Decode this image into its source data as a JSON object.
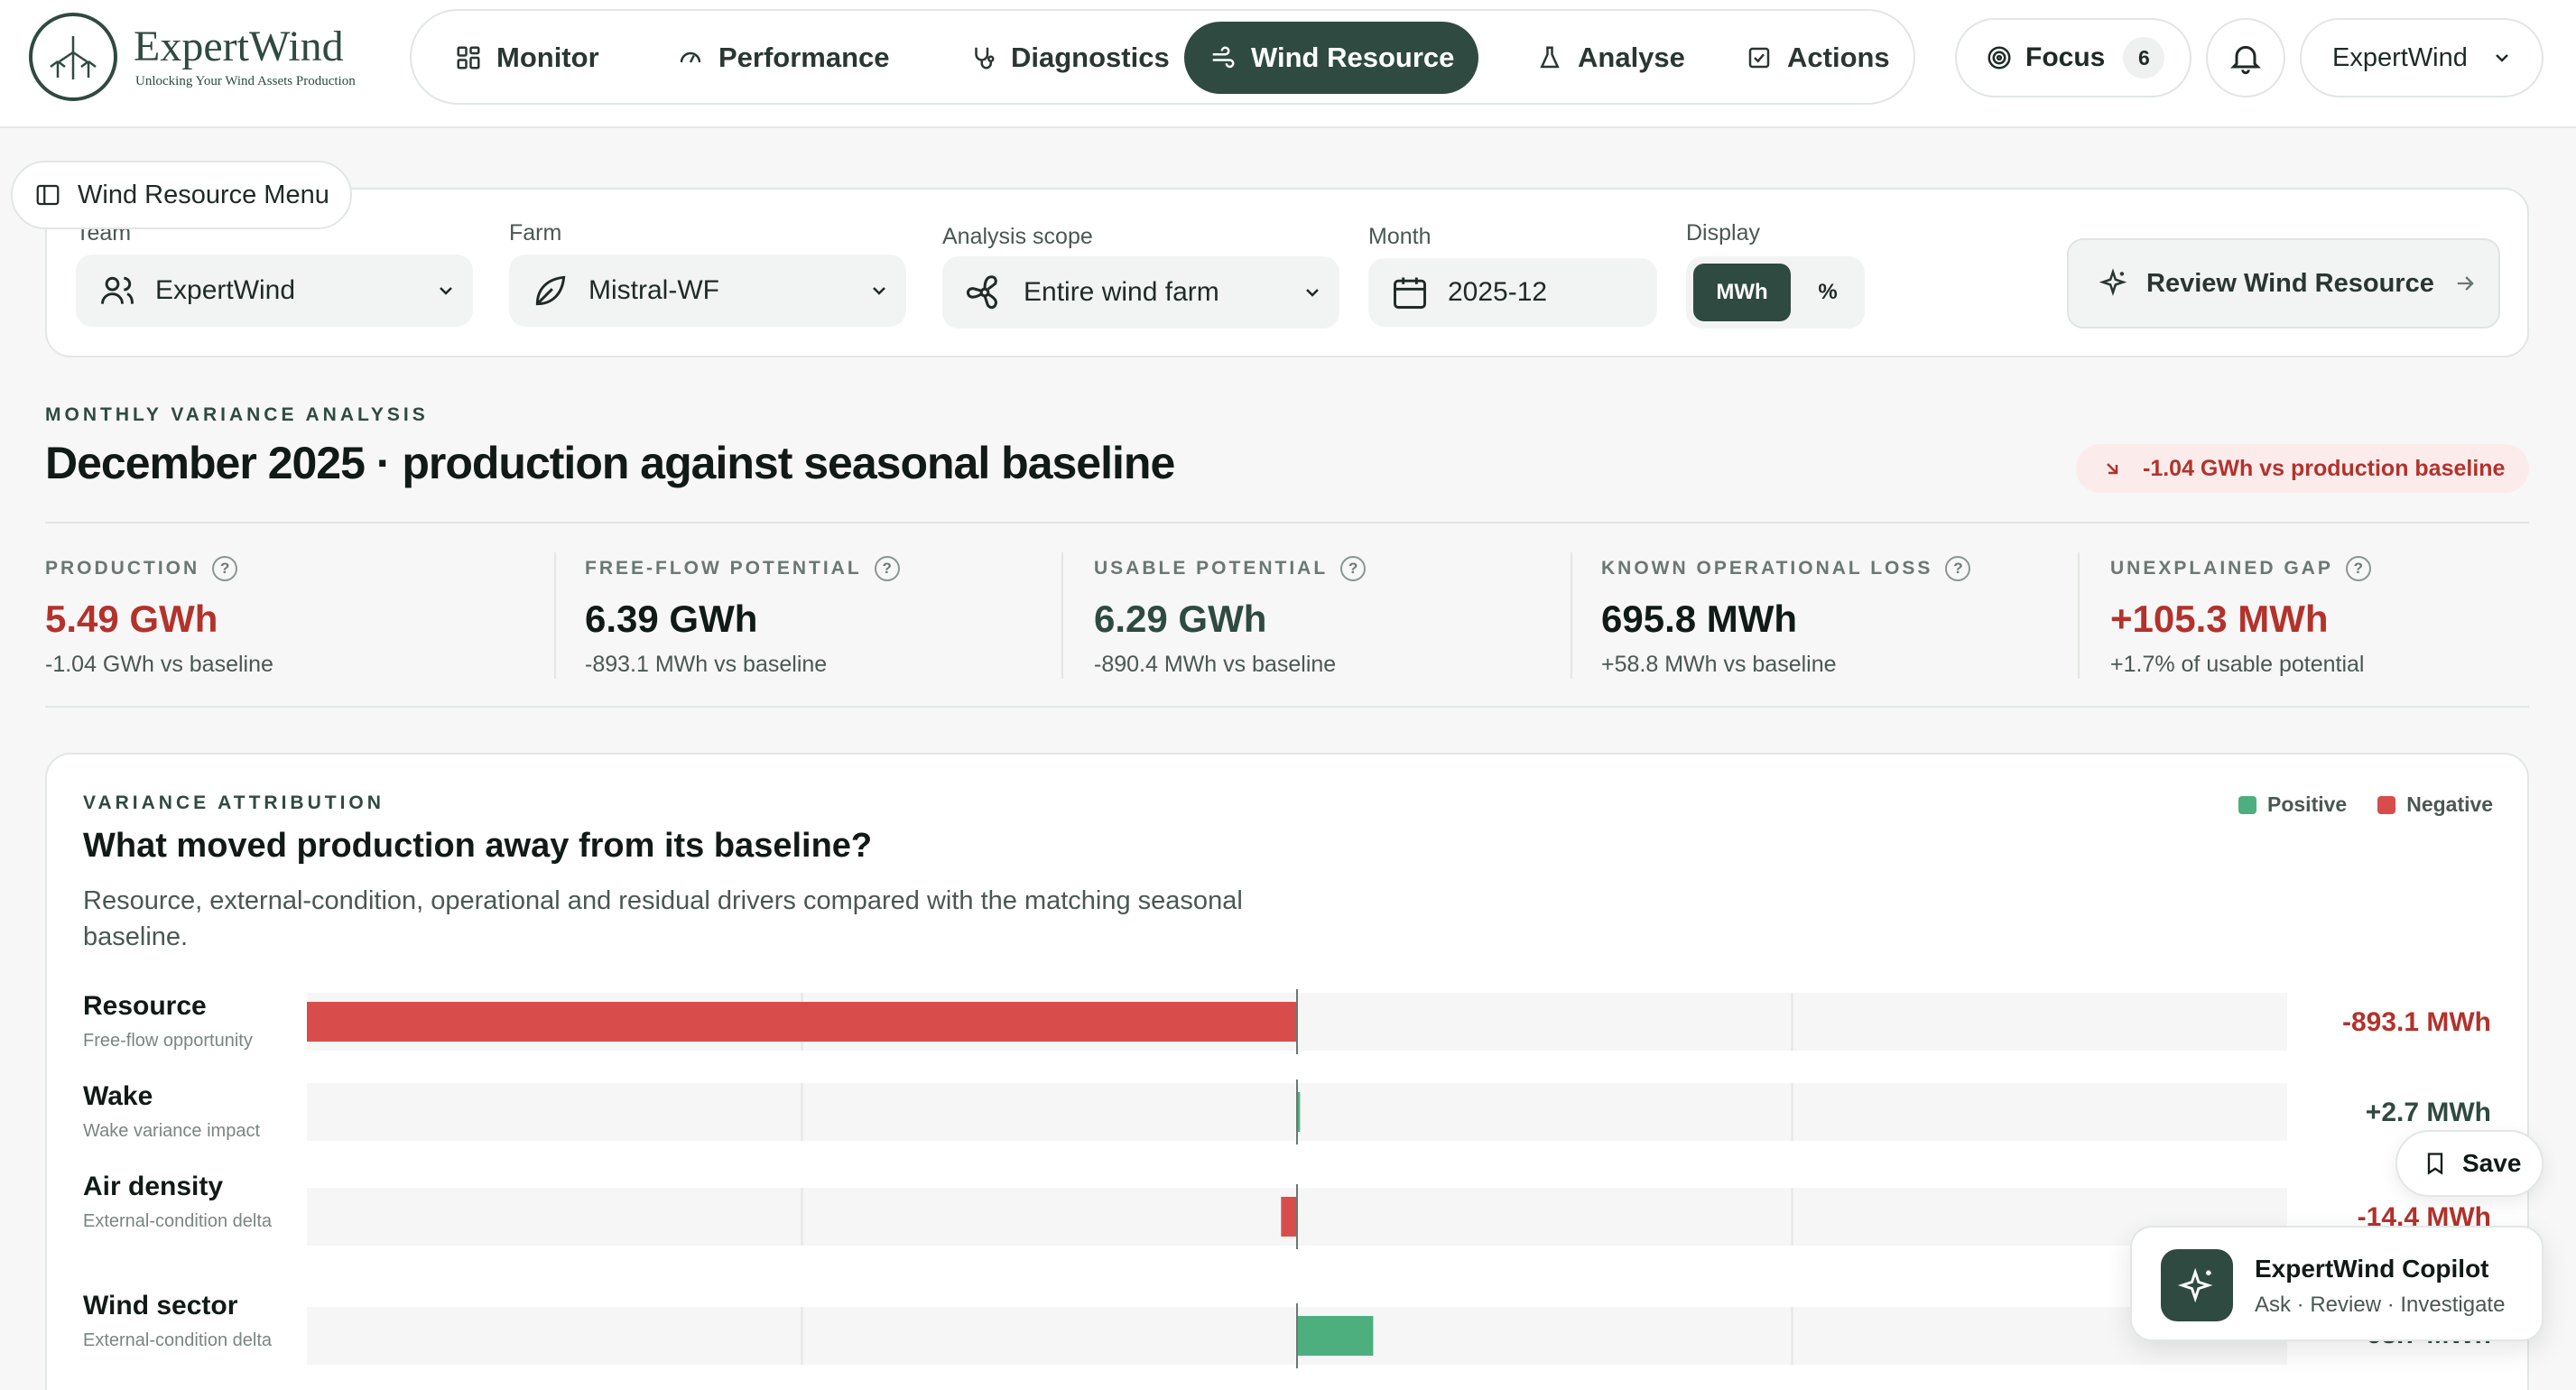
{
  "brand": {
    "name": "ExpertWind",
    "tagline": "Unlocking Your Wind Assets Production"
  },
  "nav": {
    "items": [
      {
        "label": "Monitor",
        "icon": "grid-icon"
      },
      {
        "label": "Performance",
        "icon": "gauge-icon"
      },
      {
        "label": "Diagnostics",
        "icon": "stethoscope-icon"
      },
      {
        "label": "Wind Resource",
        "icon": "wind-icon",
        "active": true
      },
      {
        "label": "Analyse",
        "icon": "flask-icon"
      },
      {
        "label": "Actions",
        "icon": "checkbox-icon"
      }
    ],
    "focus_label": "Focus",
    "focus_count": "6",
    "account_label": "ExpertWind"
  },
  "filters": {
    "menu_label": "Wind Resource Menu",
    "team_label": "Team",
    "team_value": "ExpertWind",
    "farm_label": "Farm",
    "farm_value": "Mistral-WF",
    "scope_label": "Analysis scope",
    "scope_value": "Entire wind farm",
    "month_label": "Month",
    "month_value": "2025-12",
    "display_label": "Display",
    "display_options": [
      "MWh",
      "%"
    ],
    "display_selected": "MWh",
    "review_label": "Review Wind Resource"
  },
  "header": {
    "eyebrow": "MONTHLY VARIANCE ANALYSIS",
    "title": "December 2025 · production against seasonal baseline",
    "delta_badge": "-1.04 GWh vs production baseline"
  },
  "kpis": [
    {
      "label": "PRODUCTION",
      "value": "5.49 GWh",
      "sub": "-1.04 GWh vs baseline",
      "tone": "red"
    },
    {
      "label": "FREE-FLOW POTENTIAL",
      "value": "6.39 GWh",
      "sub": "-893.1 MWh vs baseline",
      "tone": "dark"
    },
    {
      "label": "USABLE POTENTIAL",
      "value": "6.29 GWh",
      "sub": "-890.4 MWh vs baseline",
      "tone": "green"
    },
    {
      "label": "KNOWN OPERATIONAL LOSS",
      "value": "695.8 MWh",
      "sub": "+58.8 MWh vs baseline",
      "tone": "dark"
    },
    {
      "label": "UNEXPLAINED GAP",
      "value": "+105.3 MWh",
      "sub": "+1.7% of usable potential",
      "tone": "red"
    }
  ],
  "attribution": {
    "eyebrow": "VARIANCE ATTRIBUTION",
    "title": "What moved production away from its baseline?",
    "description": "Resource, external-condition, operational and residual drivers compared with the matching seasonal baseline.",
    "legend_positive": "Positive",
    "legend_negative": "Negative",
    "colors": {
      "positive": "#4caf7d",
      "negative": "#d94c4c"
    },
    "rows": [
      {
        "name": "Resource",
        "sub": "Free-flow opportunity",
        "value_label": "-893.1 MWh"
      },
      {
        "name": "Wake",
        "sub": "Wake variance impact",
        "value_label": "+2.7 MWh"
      },
      {
        "name": "Air density",
        "sub": "External-condition delta",
        "value_label": "-14.4 MWh"
      },
      {
        "name": "Wind sector",
        "sub": "External-condition delta",
        "value_label": "+68.7 MWh"
      }
    ]
  },
  "chart_data": {
    "type": "bar",
    "orientation": "horizontal",
    "categories": [
      "Resource",
      "Wake",
      "Air density",
      "Wind sector"
    ],
    "values": [
      -893.1,
      2.7,
      -14.4,
      68.7
    ],
    "unit": "MWh",
    "xlim": [
      -893.1,
      893.1
    ]
  },
  "save_label": "Save",
  "copilot": {
    "title": "ExpertWind Copilot",
    "subtitle": "Ask · Review · Investigate"
  }
}
